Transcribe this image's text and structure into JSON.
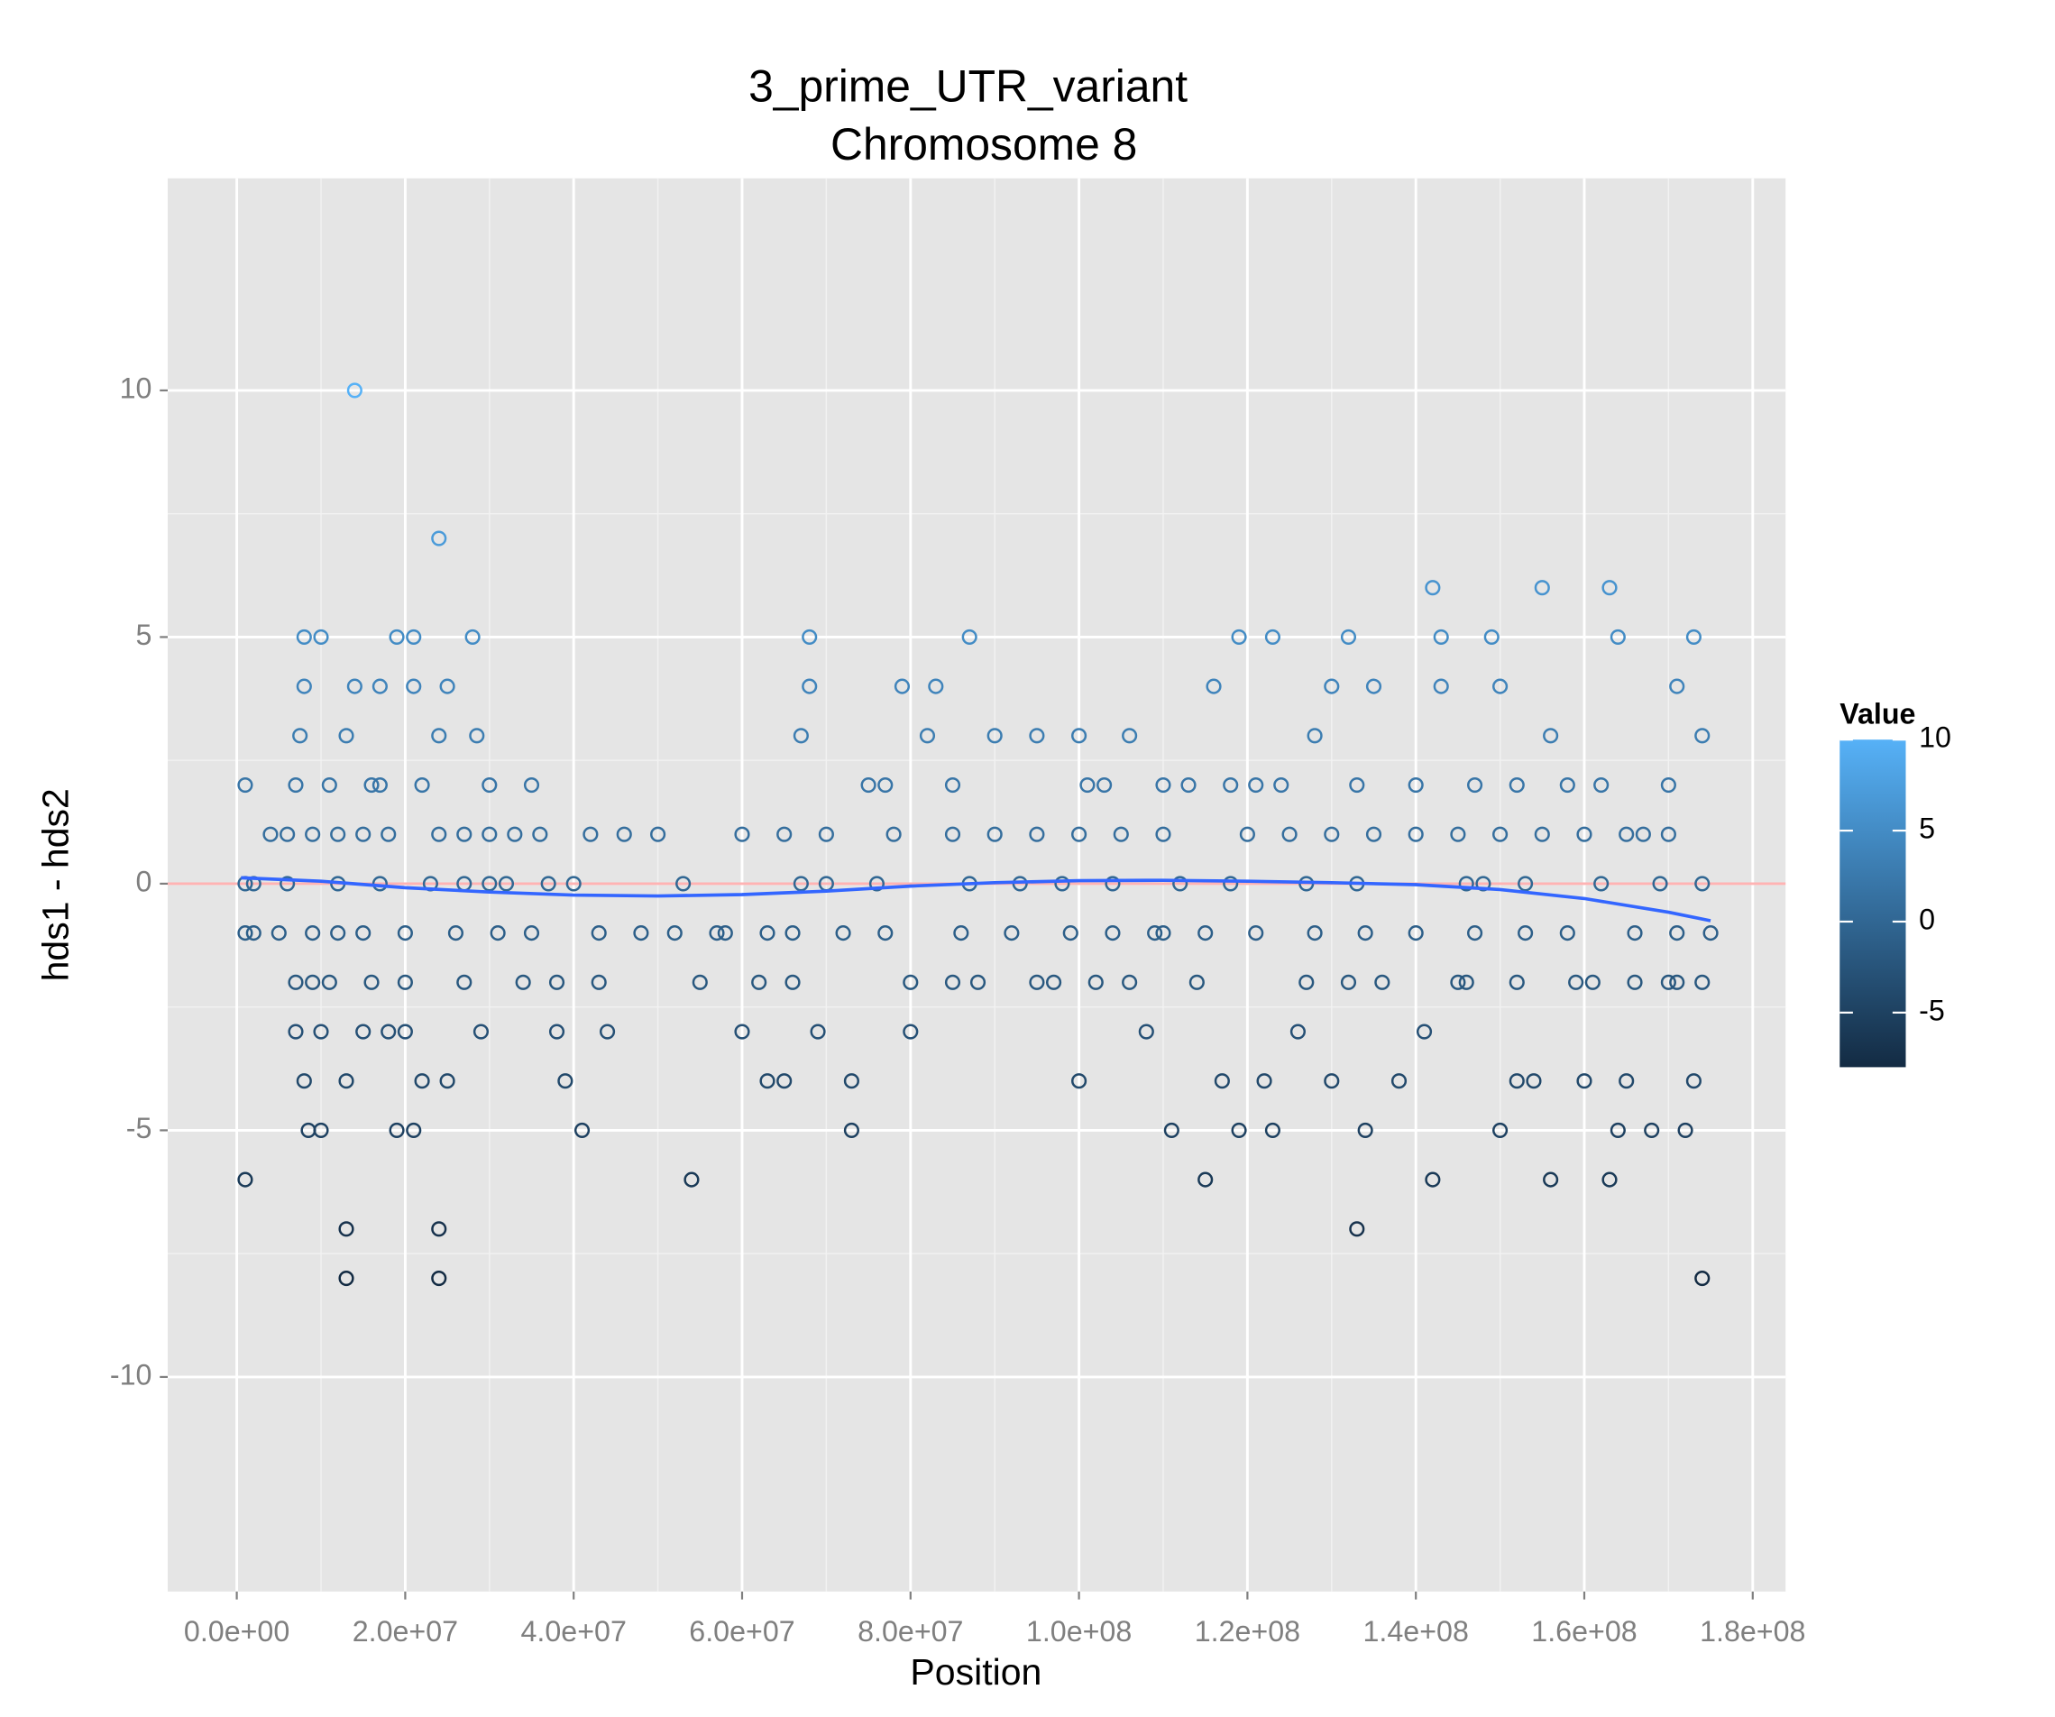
{
  "chart_data": {
    "type": "scatter",
    "title": "3_prime_UTR_variant",
    "subtitle": "Chromosome 8",
    "xlabel": "Position",
    "ylabel": "hds1 - hds2",
    "xlim": [
      -8200000,
      183900000
    ],
    "ylim": [
      -14.35,
      14.3
    ],
    "xticks": [
      {
        "value": 0,
        "label": "0.0e+00"
      },
      {
        "value": 20000000.0,
        "label": "2.0e+07"
      },
      {
        "value": 40000000.0,
        "label": "4.0e+07"
      },
      {
        "value": 60000000.0,
        "label": "6.0e+07"
      },
      {
        "value": 80000000.0,
        "label": "8.0e+07"
      },
      {
        "value": 100000000.0,
        "label": "1.0e+08"
      },
      {
        "value": 120000000.0,
        "label": "1.2e+08"
      },
      {
        "value": 140000000.0,
        "label": "1.4e+08"
      },
      {
        "value": 160000000.0,
        "label": "1.6e+08"
      },
      {
        "value": 180000000.0,
        "label": "1.8e+08"
      }
    ],
    "yticks": [
      -10,
      -5,
      0,
      5,
      10
    ],
    "grid": true,
    "x": [
      1000000.0,
      1000000.0,
      1000000.0,
      1000000.0,
      2000000.0,
      2000000.0,
      4000000.0,
      5000000.0,
      6000000.0,
      7000000.0,
      7000000.0,
      7000000.0,
      7500000.0,
      8000000.0,
      8000000.0,
      8000000.0,
      8500000.0,
      9000000.0,
      10000000.0,
      10000000.0,
      10000000.0,
      11000000.0,
      12000000.0,
      13000000.0,
      13000000.0,
      13000000.0,
      13000000.0,
      14000000.0,
      14000000.0,
      15000000.0,
      15000000.0,
      16000000.0,
      17000000.0,
      18000000.0,
      19000000.0,
      19000000.0,
      20000000.0,
      21000000.0,
      21000000.0,
      21000000.0,
      22000000.0,
      22000000.0,
      23000000.0,
      24000000.0,
      24000000.0,
      24000000.0,
      24000000.0,
      25000000.0,
      25000000.0,
      27000000.0,
      28000000.0,
      28500000.0,
      29000000.0,
      30000000.0,
      32000000.0,
      34000000.0,
      35000000.0,
      36000000.0,
      38000000.0,
      39000000.0,
      40000000.0,
      41000000.0,
      42000000.0,
      44000000.0,
      46000000.0,
      48000000.0,
      50000000.0,
      53000000.0,
      54000000.0,
      55000000.0,
      58000000.0,
      60000000.0,
      60000000.0,
      62000000.0,
      63000000.0,
      65000000.0,
      67000000.0,
      68000000.0,
      68000000.0,
      69000000.0,
      70000000.0,
      72000000.0,
      73000000.0,
      73000000.0,
      75000000.0,
      78000000.0,
      79000000.0,
      80000000.0,
      80000000.0,
      82000000.0,
      83000000.0,
      85000000.0,
      87000000.0,
      88000000.0,
      90000000.0,
      93000000.0,
      95000000.0,
      97000000.0,
      100000000.0,
      100000000.0,
      101000000.0,
      102000000.0,
      105000000.0,
      106000000.0,
      108000000.0,
      110000000.0,
      111000000.0,
      113000000.0,
      115000000.0,
      116000000.0,
      117000000.0,
      119000000.0,
      119000000.0,
      121000000.0,
      122000000.0,
      123000000.0,
      123000000.0,
      126000000.0,
      128000000.0,
      130000000.0,
      130000000.0,
      132000000.0,
      133000000.0,
      134000000.0,
      135000000.0,
      136000000.0,
      138000000.0,
      140000000.0,
      141000000.0,
      142000000.0,
      142000000.0,
      143000000.0,
      143000000.0,
      145000000.0,
      148000000.0,
      149000000.0,
      150000000.0,
      150000000.0,
      152000000.0,
      154000000.0,
      155000000.0,
      156000000.0,
      156000000.0,
      158000000.0,
      160000000.0,
      161000000.0,
      163000000.0,
      163000000.0,
      164000000.0,
      164000000.0,
      165000000.0,
      167000000.0,
      168000000.0,
      170000000.0,
      171000000.0,
      172000000.0,
      173000000.0,
      173000000.0,
      174000000.0,
      174000000.0,
      175000000.0,
      9000000.0,
      12000000.0,
      18000000.0,
      24000000.0,
      27000000.0,
      33000000.0,
      65000000.0,
      70000000.0,
      85000000.0,
      90000000.0,
      95000000.0,
      100000000.0,
      110000000.0,
      120000000.0,
      125000000.0,
      130000000.0,
      135000000.0,
      145000000.0,
      150000000.0,
      155000000.0,
      160000000.0,
      165000000.0,
      170000000.0,
      6000000.0,
      12000000.0,
      17000000.0,
      27000000.0,
      30000000.0,
      37000000.0,
      67000000.0,
      76000000.0,
      87000000.0,
      98000000.0,
      104000000.0,
      112000000.0,
      118000000.0,
      127000000.0,
      133000000.0,
      146000000.0,
      153000000.0,
      162000000.0,
      169000000.0,
      174000000.0,
      9000000.0,
      15000000.0,
      20000000.0,
      26000000.0,
      31000000.0,
      35000000.0,
      43000000.0,
      52000000.0,
      57000000.0,
      63000000.0,
      66000000.0,
      77000000.0,
      86000000.0,
      92000000.0,
      99000000.0,
      104000000.0,
      109000000.0,
      115000000.0,
      121000000.0,
      128000000.0,
      134000000.0,
      140000000.0,
      147000000.0,
      153000000.0,
      158000000.0,
      166000000.0,
      171000000.0,
      17000000.0,
      30000000.0,
      77000000.0,
      103000000.0,
      110000000.0,
      118000000.0,
      124000000.0,
      133000000.0,
      140000000.0,
      147000000.0,
      152000000.0,
      162000000.0,
      170000000.0,
      11000000.0,
      16000000.0,
      20000000.0,
      38000000.0,
      43000000.0,
      66000000.0,
      85000000.0,
      95000000.0,
      106000000.0,
      114000000.0,
      127000000.0,
      132000000.0,
      146000000.0,
      152000000.0,
      159000000.0,
      166000000.0,
      171000000.0,
      174000000.0
    ],
    "values": [
      0,
      2,
      -1,
      -6,
      0,
      -1,
      1,
      -1,
      1,
      2,
      -2,
      -3,
      3,
      5,
      4,
      -4,
      -5,
      -2,
      5,
      -5,
      -3,
      2,
      -1,
      3,
      -7,
      -8,
      -4,
      10,
      4,
      1,
      -3,
      2,
      4,
      -3,
      5,
      -5,
      -3,
      5,
      -5,
      4,
      2,
      -4,
      0,
      7,
      -7,
      -8,
      3,
      4,
      -4,
      -2,
      5,
      3,
      -3,
      1,
      0,
      -2,
      2,
      1,
      -3,
      -4,
      0,
      -5,
      1,
      -3,
      1,
      -1,
      1,
      0,
      -6,
      -2,
      -1,
      1,
      -3,
      -2,
      -4,
      -4,
      3,
      5,
      4,
      -3,
      0,
      -1,
      -4,
      -5,
      2,
      1,
      4,
      -2,
      -3,
      3,
      4,
      2,
      5,
      -2,
      3,
      0,
      3,
      -2,
      -4,
      3,
      2,
      -2,
      1,
      3,
      -3,
      -1,
      -5,
      2,
      -6,
      4,
      -4,
      5,
      -5,
      2,
      -4,
      5,
      -5,
      -3,
      3,
      4,
      -4,
      5,
      -7,
      -5,
      4,
      -2,
      -4,
      1,
      -3,
      6,
      -6,
      5,
      4,
      -2,
      0,
      5,
      -5,
      4,
      -4,
      -4,
      6,
      -6,
      3,
      2,
      -4,
      -2,
      6,
      -6,
      5,
      -5,
      -4,
      1,
      -5,
      -2,
      4,
      -5,
      5,
      -4,
      -8,
      3,
      -1,
      1,
      1,
      1,
      1,
      1,
      1,
      1,
      1,
      1,
      1,
      1,
      1,
      1,
      1,
      1,
      1,
      1,
      1,
      1,
      1,
      1,
      1,
      1,
      0,
      0,
      0,
      0,
      0,
      0,
      0,
      0,
      0,
      0,
      0,
      0,
      0,
      0,
      0,
      0,
      0,
      0,
      0,
      0,
      -1,
      -1,
      -1,
      -1,
      -1,
      -1,
      -1,
      -1,
      -1,
      -1,
      -1,
      -1,
      -1,
      -1,
      -1,
      -1,
      -1,
      -1,
      -1,
      -1,
      -1,
      -1,
      -1,
      -1,
      -1,
      -1,
      -1,
      2,
      2,
      2,
      2,
      2,
      2,
      2,
      2,
      2,
      2,
      2,
      2,
      2,
      -2,
      -2,
      -2,
      -2,
      -2,
      -2,
      -2,
      -2,
      -2,
      -2,
      -2,
      -2,
      -2,
      -2,
      -2,
      -2,
      -2,
      -2
    ],
    "color_scale": {
      "title": "Value",
      "low": "#132B43",
      "high": "#56B1F7",
      "limits": [
        -8,
        10
      ],
      "ticks": [
        10,
        5,
        0,
        -5
      ]
    },
    "hline": {
      "value": 0,
      "color": "#FFB3B3"
    },
    "smooth": {
      "color": "#3366FF",
      "x": [
        500000.0,
        10000000.0,
        20000000.0,
        30000000.0,
        40000000.0,
        50000000.0,
        60000000.0,
        70000000.0,
        80000000.0,
        90000000.0,
        100000000.0,
        110000000.0,
        120000000.0,
        130000000.0,
        140000000.0,
        150000000.0,
        160000000.0,
        170000000.0,
        175000000.0
      ],
      "values": [
        0.12,
        0.05,
        -0.08,
        -0.17,
        -0.23,
        -0.25,
        -0.22,
        -0.15,
        -0.05,
        0.02,
        0.06,
        0.07,
        0.05,
        0.02,
        -0.02,
        -0.12,
        -0.3,
        -0.58,
        -0.75
      ]
    }
  }
}
